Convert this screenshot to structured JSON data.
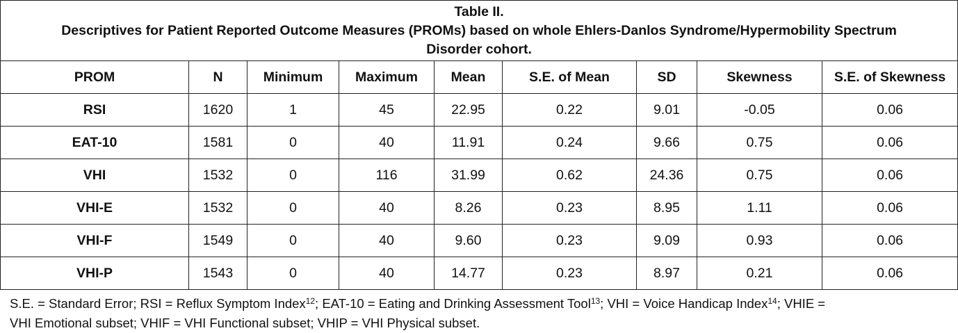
{
  "table": {
    "caption_line1": "Table II.",
    "caption_line2": "Descriptives for Patient Reported Outcome Measures (PROMs) based on whole Ehlers-Danlos Syndrome/Hypermobility Spectrum",
    "caption_line3": "Disorder cohort.",
    "headers": [
      "PROM",
      "N",
      "Minimum",
      "Maximum",
      "Mean",
      "S.E. of Mean",
      "SD",
      "Skewness",
      "S.E. of Skewness"
    ],
    "rows": [
      [
        "RSI",
        "1620",
        "1",
        "45",
        "22.95",
        "0.22",
        "9.01",
        "-0.05",
        "0.06"
      ],
      [
        "EAT-10",
        "1581",
        "0",
        "40",
        "11.91",
        "0.24",
        "9.66",
        "0.75",
        "0.06"
      ],
      [
        "VHI",
        "1532",
        "0",
        "116",
        "31.99",
        "0.62",
        "24.36",
        "0.75",
        "0.06"
      ],
      [
        "VHI-E",
        "1532",
        "0",
        "40",
        "8.26",
        "0.23",
        "8.95",
        "1.11",
        "0.06"
      ],
      [
        "VHI-F",
        "1549",
        "0",
        "40",
        "9.60",
        "0.23",
        "9.09",
        "0.93",
        "0.06"
      ],
      [
        "VHI-P",
        "1543",
        "0",
        "40",
        "14.77",
        "0.23",
        "8.97",
        "0.21",
        "0.06"
      ]
    ]
  },
  "footnote": {
    "p1": "S.E. = Standard Error; RSI = Reflux Symptom Index",
    "sup1": "12",
    "p2": "; EAT-10 = Eating and Drinking Assessment Tool",
    "sup2": "13",
    "p3": "; VHI = Voice Handicap Index",
    "sup3": "14",
    "p4": "; VHIE =",
    "line2": "VHI Emotional subset; VHIF = VHI Functional subset; VHIP = VHI Physical subset."
  }
}
